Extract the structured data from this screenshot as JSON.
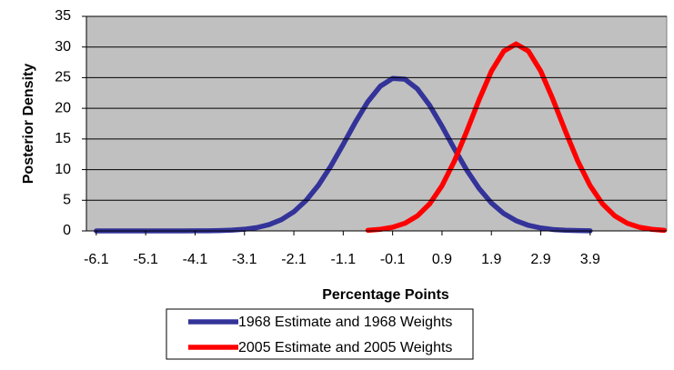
{
  "chart_data": {
    "type": "line",
    "x_label": "Percentage Points",
    "y_label": "Posterior Density",
    "x": [
      -6.1,
      -5.85,
      -5.6,
      -5.35,
      -5.1,
      -4.85,
      -4.6,
      -4.35,
      -4.1,
      -3.85,
      -3.6,
      -3.35,
      -3.1,
      -2.85,
      -2.6,
      -2.35,
      -2.1,
      -1.85,
      -1.6,
      -1.35,
      -1.1,
      -0.85,
      -0.6,
      -0.35,
      -0.1,
      0.15,
      0.4,
      0.65,
      0.9,
      1.15,
      1.4,
      1.65,
      1.9,
      2.15,
      2.4,
      2.65,
      2.9,
      3.15,
      3.4,
      3.65,
      3.9,
      4.15,
      4.4,
      4.65,
      4.9,
      5.15,
      5.4
    ],
    "series": [
      {
        "name": "1968 Estimate and 1968 Weights",
        "color": "#333399",
        "values": [
          0,
          0,
          0,
          0,
          0,
          0,
          0,
          0,
          0.01,
          0.02,
          0.06,
          0.13,
          0.27,
          0.54,
          1.03,
          1.85,
          3.12,
          4.99,
          7.47,
          10.59,
          14.13,
          17.78,
          21.1,
          23.6,
          24.88,
          24.74,
          23.18,
          20.48,
          17.07,
          13.4,
          9.93,
          6.93,
          4.56,
          2.83,
          1.66,
          0.91,
          0.48,
          0.23,
          0.11,
          0.05,
          0.02,
          null,
          null,
          null,
          null,
          null,
          null
        ]
      },
      {
        "name": "2005 Estimate and 2005 Weights",
        "color": "#ff0000",
        "values": [
          null,
          null,
          null,
          null,
          null,
          null,
          null,
          null,
          null,
          null,
          null,
          null,
          null,
          null,
          null,
          null,
          null,
          null,
          null,
          null,
          null,
          null,
          0.1,
          0.26,
          0.59,
          1.25,
          2.44,
          4.41,
          7.37,
          11.38,
          16.23,
          21.38,
          26.05,
          29.32,
          30.5,
          29.32,
          26.05,
          21.38,
          16.23,
          11.38,
          7.37,
          4.41,
          2.44,
          1.25,
          0.59,
          0.26,
          0.1
        ]
      }
    ],
    "xlim": [
      -6.3,
      5.45
    ],
    "xticks": [
      -6.1,
      -5.1,
      -4.1,
      -3.1,
      -2.1,
      -1.1,
      -0.1,
      0.9,
      1.9,
      2.9,
      3.9
    ],
    "ylim": [
      0,
      35
    ],
    "yticks": [
      0,
      5,
      10,
      15,
      20,
      25,
      30,
      35
    ],
    "grid": true,
    "legend": "bottom"
  }
}
